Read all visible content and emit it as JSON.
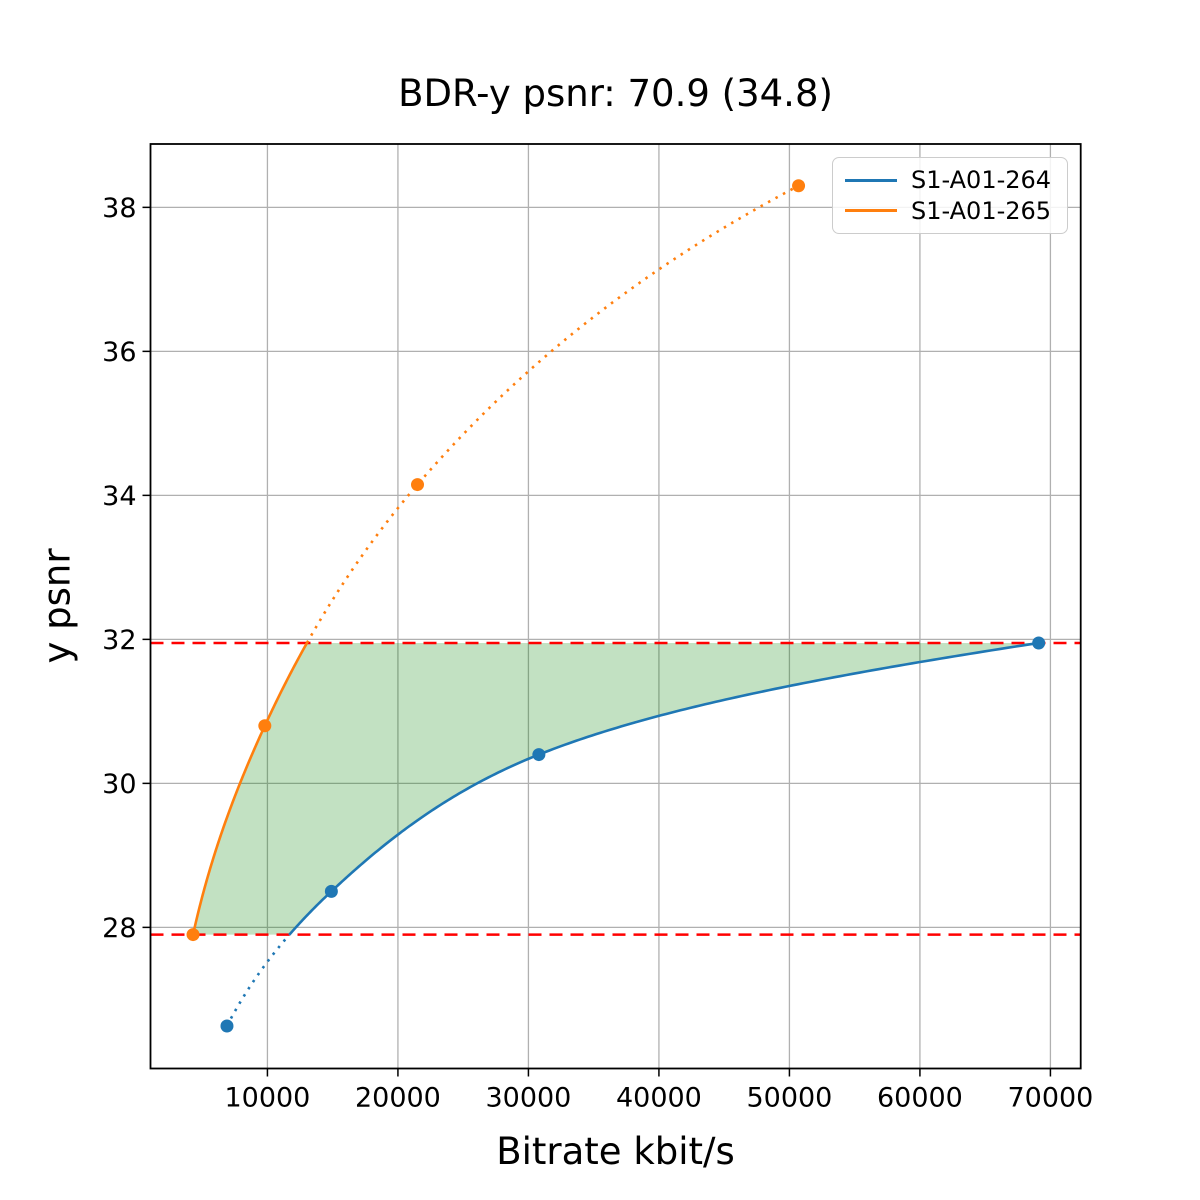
{
  "title": "BDR-y psnr: 70.9 (34.8)",
  "chart_data": {
    "type": "line",
    "title": "BDR-y psnr: 70.9 (34.8)",
    "xlabel": "Bitrate kbit/s",
    "ylabel": "y psnr",
    "xlim": [
      1040,
      72320
    ],
    "ylim": [
      26.04,
      38.88
    ],
    "xticks": [
      10000,
      20000,
      30000,
      40000,
      50000,
      60000,
      70000
    ],
    "yticks": [
      28,
      30,
      32,
      34,
      36,
      38
    ],
    "grid": true,
    "grid_color": "#b0b0b0",
    "legend_position": "upper right",
    "series": [
      {
        "name": "S1-A01-264",
        "color": "#1f77b4",
        "points": [
          [
            6900,
            26.63
          ],
          [
            14900,
            28.5
          ],
          [
            30800,
            30.4
          ],
          [
            69100,
            31.95
          ]
        ]
      },
      {
        "name": "S1-A01-265",
        "color": "#ff7f0e",
        "points": [
          [
            4300,
            27.9
          ],
          [
            9800,
            30.8
          ],
          [
            21500,
            34.15
          ],
          [
            50700,
            38.3
          ]
        ]
      }
    ],
    "reference_lines": {
      "values": [
        27.9,
        31.95
      ],
      "color": "#ff0000",
      "style": "dashed",
      "meaning": "psnr overlap bounds used for BD-rate integration"
    },
    "shaded_region": {
      "fill": "rgba(0,128,0,0.24)",
      "between": "S1-A01-264 and S1-A01-265 curves for psnr in [27.9, 31.95]"
    },
    "curve_style_note": "curves solid inside psnr overlap range, dotted outside",
    "bdr_value": "70.9",
    "bdr_psnr_anchor": "34.8"
  },
  "legend": {
    "items": [
      {
        "label": "S1-A01-264",
        "color": "#1f77b4"
      },
      {
        "label": "S1-A01-265",
        "color": "#ff7f0e"
      }
    ]
  }
}
